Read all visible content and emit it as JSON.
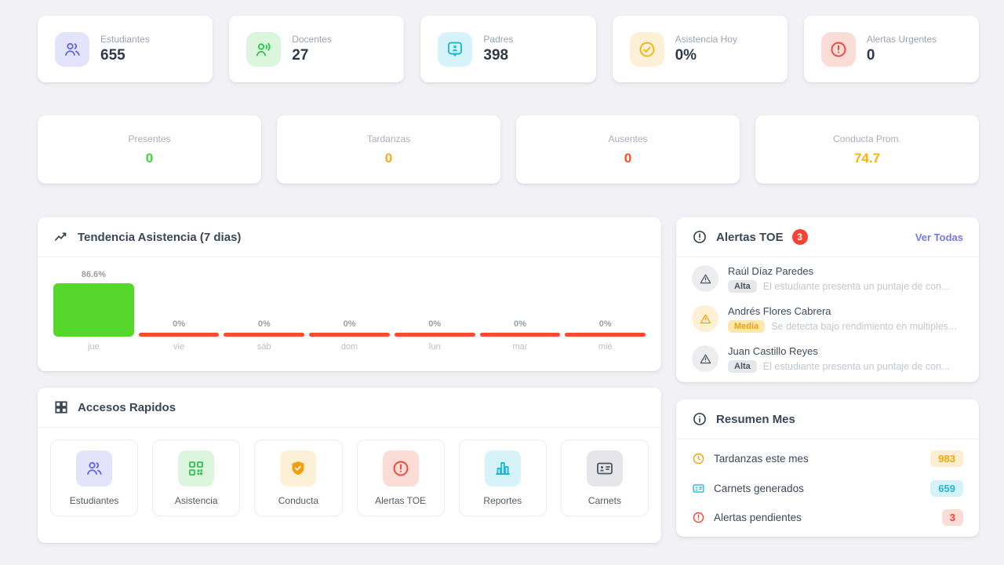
{
  "colors": {
    "page_bg": "#f2f2f6",
    "accent_purple": "#6366f1",
    "accent_green": "#2fc351",
    "accent_cyan": "#1fb8d9",
    "accent_amber": "#f5b40c",
    "accent_red": "#f44336",
    "link_purple": "#7577f1"
  },
  "stats": [
    {
      "label": "Estudiantes",
      "value": "655",
      "icon": "users-icon"
    },
    {
      "label": "Docentes",
      "value": "27",
      "icon": "user-voice-icon"
    },
    {
      "label": "Padres",
      "value": "398",
      "icon": "contact-badge-icon"
    },
    {
      "label": "Asistencia Hoy",
      "value": "0%",
      "icon": "check-circle-icon"
    },
    {
      "label": "Alertas Urgentes",
      "value": "0",
      "icon": "alert-circle-icon"
    }
  ],
  "mini_stats": [
    {
      "label": "Presentes",
      "value": "0",
      "color": "#3ed33e"
    },
    {
      "label": "Tardanzas",
      "value": "0",
      "color": "#ffa718"
    },
    {
      "label": "Ausentes",
      "value": "0",
      "color": "#ff4b2c"
    },
    {
      "label": "Conducta Prom.",
      "value": "74.7",
      "color": "#ffb300"
    }
  ],
  "attendance": {
    "title": "Tendencia Asistencia (7 dias)"
  },
  "chart_data": {
    "type": "bar",
    "title": "Tendencia Asistencia (7 dias)",
    "categories": [
      "jue",
      "vie",
      "sáb",
      "dom",
      "lun",
      "mar",
      "mié"
    ],
    "values": [
      86.6,
      0,
      0,
      0,
      0,
      0,
      0
    ],
    "value_labels": [
      "86.6%",
      "0%",
      "0%",
      "0%",
      "0%",
      "0%",
      "0%"
    ],
    "ylabel": "",
    "xlabel": "",
    "ylim": [
      0,
      100
    ],
    "grid": false,
    "legend": false,
    "bar_color_positive": "#56d72b",
    "bar_color_zero": "#fb4a31"
  },
  "alerts": {
    "title": "Alertas TOE",
    "count": "3",
    "link_label": "Ver Todas",
    "items": [
      {
        "name": "Raúl Díaz Paredes",
        "severity": "Alta",
        "description": "El estudiante presenta un puntaje de con..."
      },
      {
        "name": "Andrés Flores Cabrera",
        "severity": "Media",
        "description": "Se detecta bajo rendimiento en multiples..."
      },
      {
        "name": "Juan Castillo Reyes",
        "severity": "Alta",
        "description": "El estudiante presenta un puntaje de con..."
      }
    ]
  },
  "quick_access": {
    "title": "Accesos Rapidos",
    "items": [
      {
        "label": "Estudiantes",
        "icon": "users-icon"
      },
      {
        "label": "Asistencia",
        "icon": "qr-code-icon"
      },
      {
        "label": "Conducta",
        "icon": "shield-icon"
      },
      {
        "label": "Alertas TOE",
        "icon": "alert-circle-icon"
      },
      {
        "label": "Reportes",
        "icon": "bar-chart-icon"
      },
      {
        "label": "Carnets",
        "icon": "id-card-icon"
      }
    ]
  },
  "month_summary": {
    "title": "Resumen Mes",
    "rows": [
      {
        "label": "Tardanzas este mes",
        "value": "983",
        "icon": "clock-icon"
      },
      {
        "label": "Carnets generados",
        "value": "659",
        "icon": "id-card-icon"
      },
      {
        "label": "Alertas pendientes",
        "value": "3",
        "icon": "alert-circle-icon"
      }
    ]
  }
}
